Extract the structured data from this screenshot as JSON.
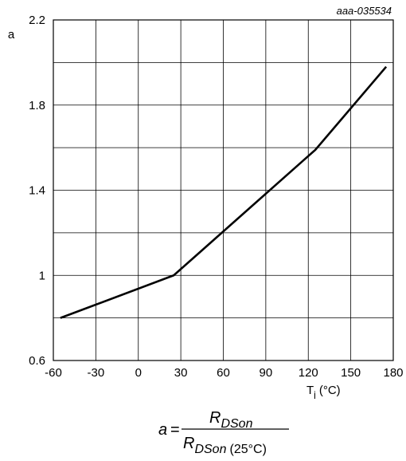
{
  "figure_ref": "aaa-035534",
  "formula": {
    "lhs": "a",
    "eq": "=",
    "num_main": "R",
    "num_sub": "DSon",
    "den_main": "R",
    "den_sub": "DSon",
    "den_paren": "(25°C)"
  },
  "chart_data": {
    "type": "line",
    "title": "",
    "xlabel": {
      "main": "T",
      "sub": "j",
      "unit": "(°C)"
    },
    "ylabel": "a",
    "xlim": [
      -60,
      180
    ],
    "ylim": [
      0.6,
      2.2
    ],
    "xticks": [
      -60,
      -30,
      0,
      30,
      60,
      90,
      120,
      150,
      180
    ],
    "yticks": [
      0.6,
      1,
      1.4,
      1.8,
      2.2
    ],
    "ytick_labels": [
      "0.6",
      "1",
      "1.4",
      "1.8",
      "2.2"
    ],
    "grid": true,
    "series": [
      {
        "x": [
          -55,
          25,
          125,
          175
        ],
        "y": [
          0.8,
          1.0,
          1.59,
          1.98
        ]
      }
    ]
  }
}
